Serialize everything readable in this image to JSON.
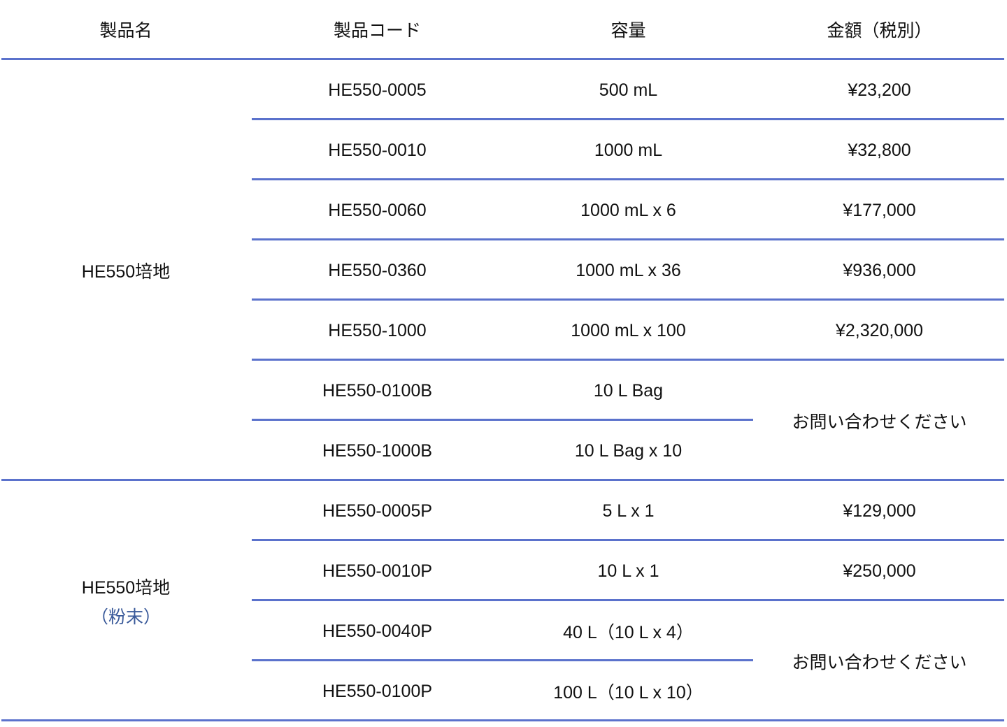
{
  "header": {
    "name": "製品名",
    "code": "製品コード",
    "volume": "容量",
    "price": "金額（税別）"
  },
  "groups": [
    {
      "name": "HE550培地",
      "sub": "",
      "rows": [
        {
          "code": "HE550-0005",
          "volume": "500 mL",
          "price": "¥23,200"
        },
        {
          "code": "HE550-0010",
          "volume": "1000 mL",
          "price": "¥32,800"
        },
        {
          "code": "HE550-0060",
          "volume": "1000 mL x 6",
          "price": "¥177,000"
        },
        {
          "code": "HE550-0360",
          "volume": "1000 mL x 36",
          "price": "¥936,000"
        },
        {
          "code": "HE550-1000",
          "volume": "1000 mL x 100",
          "price": "¥2,320,000"
        },
        {
          "code": "HE550-0100B",
          "volume": "10 L Bag",
          "price": null
        },
        {
          "code": "HE550-1000B",
          "volume": "10 L Bag x 10",
          "price": null
        }
      ],
      "merged_price": {
        "start": 5,
        "span": 2,
        "text": "お問い合わせください"
      }
    },
    {
      "name": "HE550培地",
      "sub": "（粉末）",
      "rows": [
        {
          "code": "HE550-0005P",
          "volume": "5 L x 1",
          "price": "¥129,000"
        },
        {
          "code": "HE550-0010P",
          "volume": "10 L x 1",
          "price": "¥250,000"
        },
        {
          "code": "HE550-0040P",
          "volume": "40 L（10 L x 4）",
          "price": null
        },
        {
          "code": "HE550-0100P",
          "volume": "100 L（10 L x 10）",
          "price": null
        }
      ],
      "merged_price": {
        "start": 2,
        "span": 2,
        "text": "お問い合わせください"
      }
    }
  ],
  "colors": {
    "rule": "#5b72cc",
    "subtext": "#3a5a9a",
    "text": "#111111"
  }
}
